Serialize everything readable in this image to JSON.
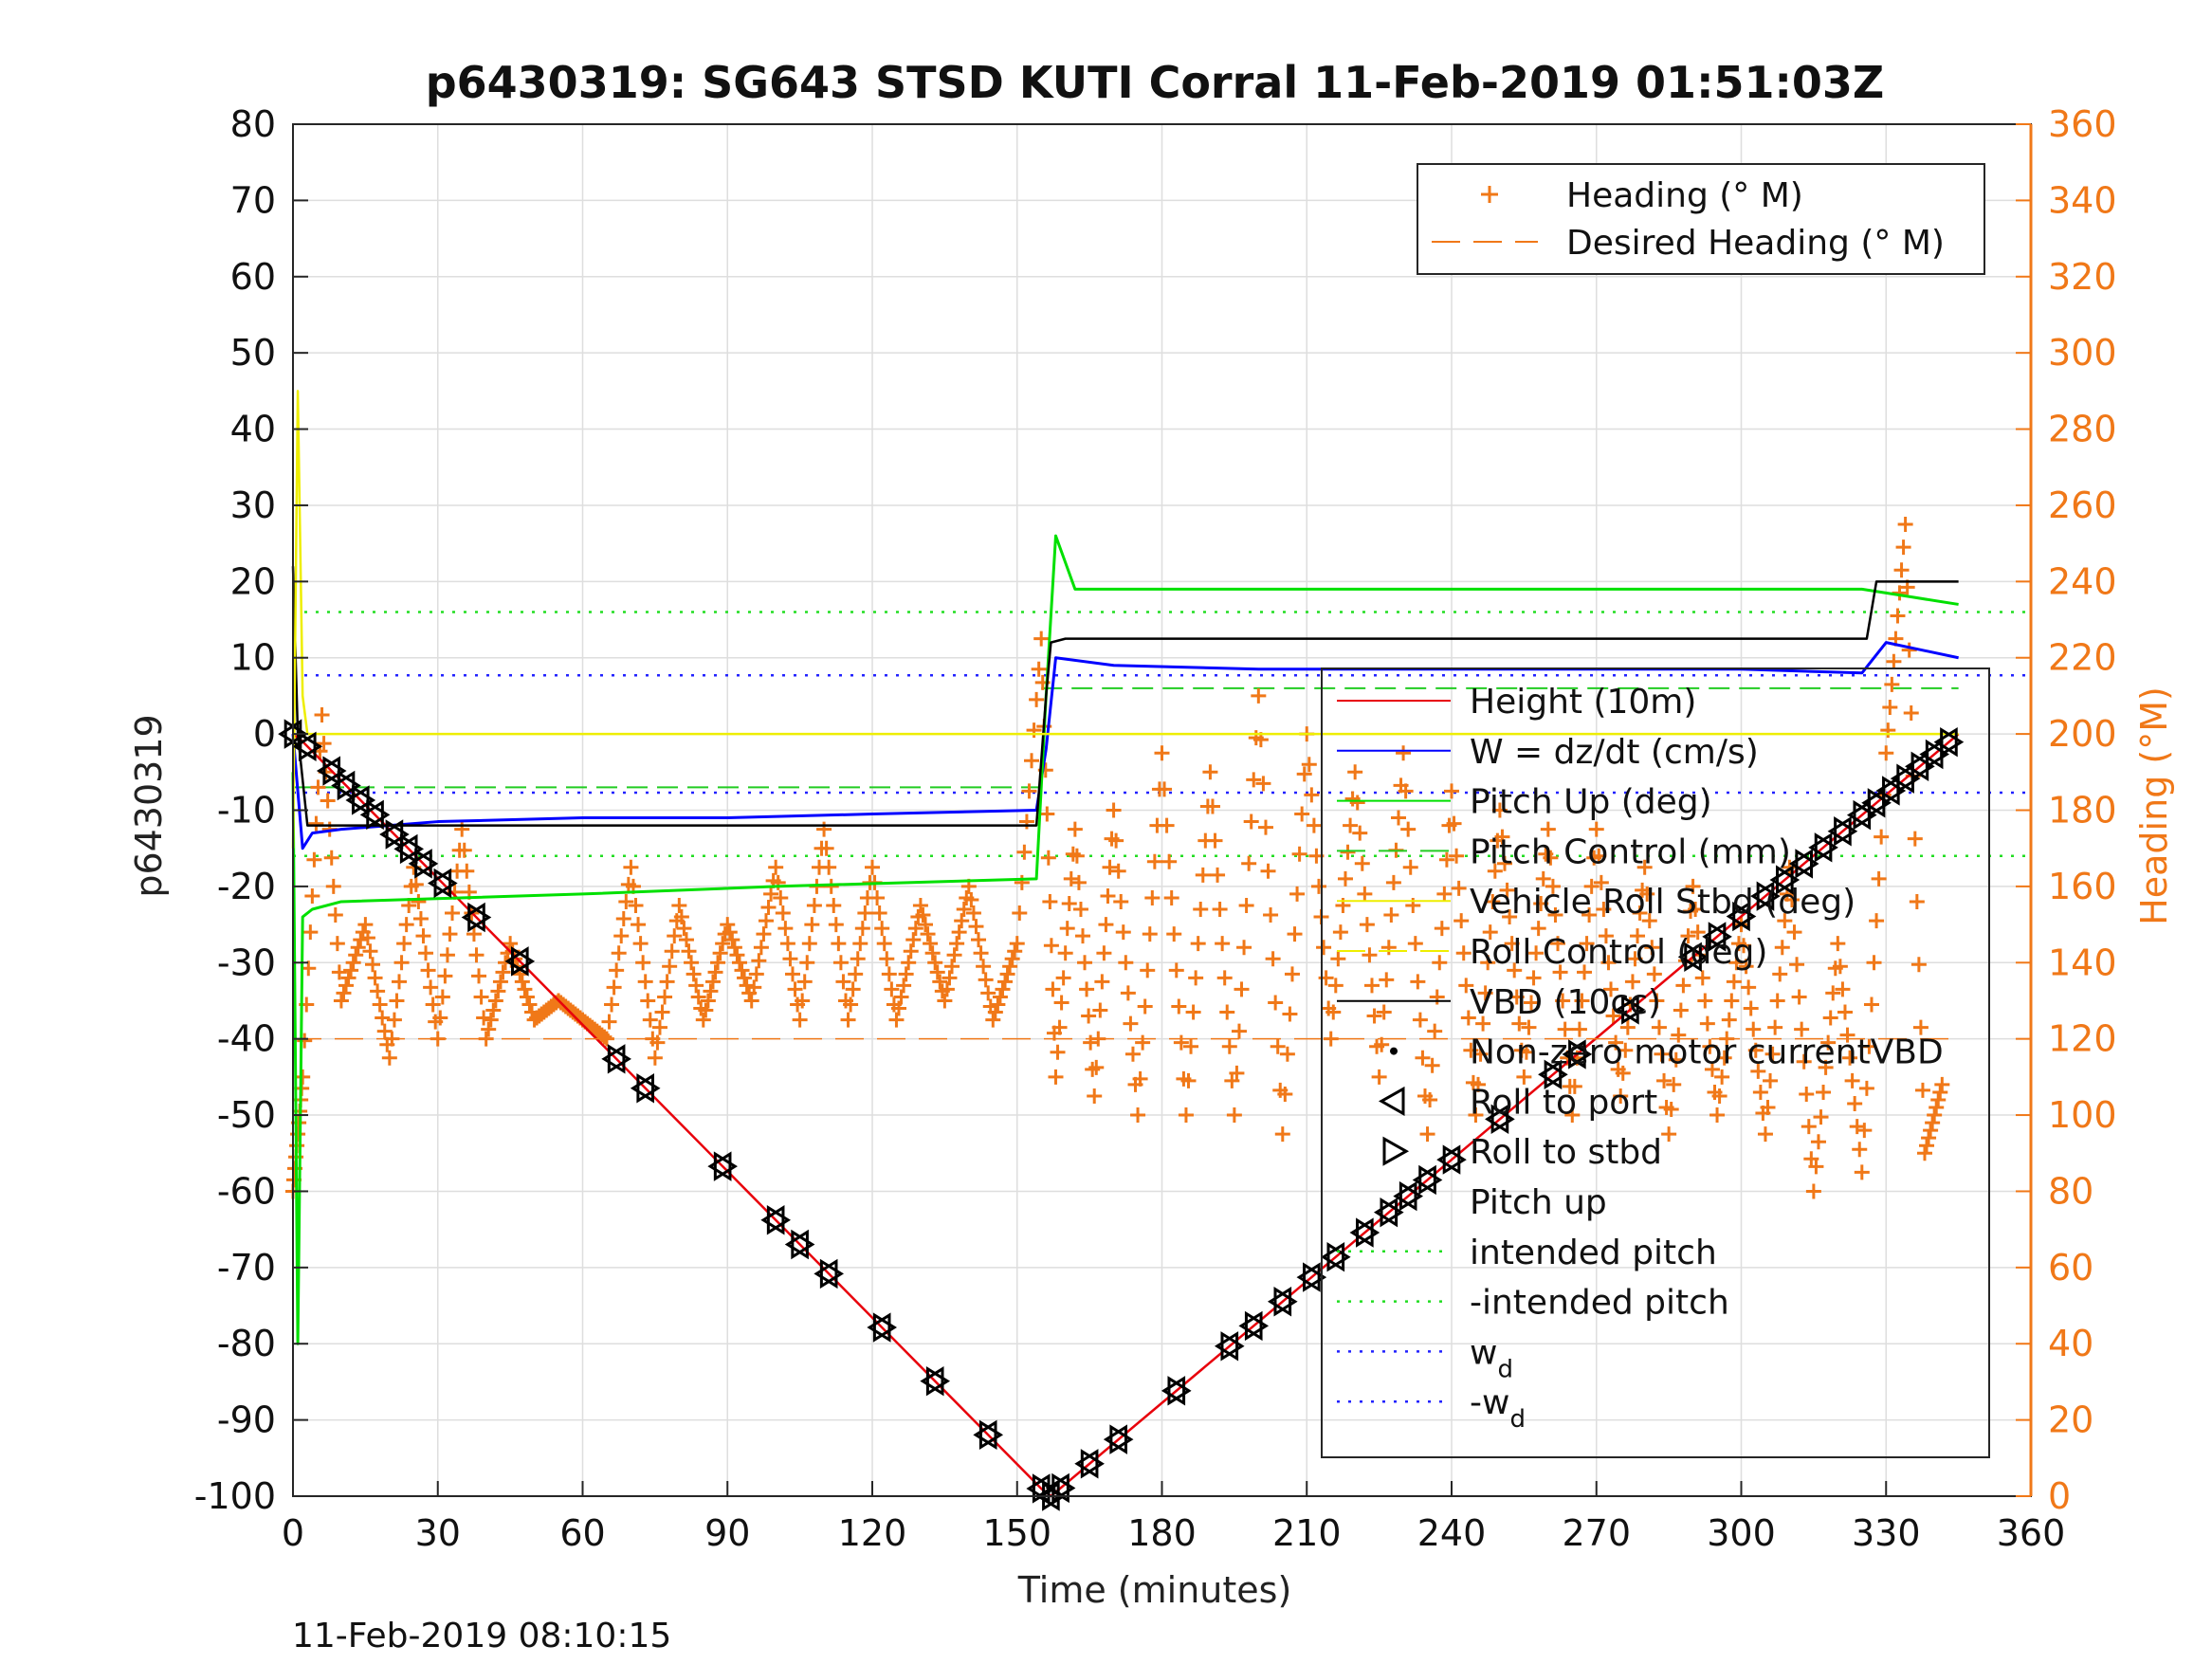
{
  "chart_data": {
    "type": "line",
    "title": "p6430319: SG643 STSD KUTI Corral 11-Feb-2019 01:51:03Z",
    "xlabel": "Time (minutes)",
    "ylabel": "p6430319",
    "y2label": "Heading (°M)",
    "footer": "11-Feb-2019 08:10:15",
    "xlim": [
      0,
      360
    ],
    "ylim": [
      -100,
      80
    ],
    "y2lim": [
      0,
      360
    ],
    "x_ticks": [
      "0",
      "30",
      "60",
      "90",
      "120",
      "150",
      "180",
      "210",
      "240",
      "270",
      "300",
      "330",
      "360"
    ],
    "y_ticks": [
      "80",
      "70",
      "60",
      "50",
      "40",
      "30",
      "20",
      "10",
      "0",
      "-10",
      "-20",
      "-30",
      "-40",
      "-50",
      "-60",
      "-70",
      "-80",
      "-90",
      "-100"
    ],
    "y2_ticks": [
      "360",
      "340",
      "320",
      "300",
      "280",
      "260",
      "240",
      "220",
      "200",
      "180",
      "160",
      "140",
      "120",
      "100",
      "80",
      "60",
      "40",
      "20",
      "0"
    ],
    "grid": true,
    "colors": {
      "height": "#e8000b",
      "w": "#0000ff",
      "pitch_up": "#00e000",
      "pitch_control": "#22cc22",
      "roll": "#eeee00",
      "vbd": "#000000",
      "heading": "#f07818"
    },
    "legend_top": [
      {
        "label": "Heading (° M)",
        "marker": "plus",
        "color": "#f07818"
      },
      {
        "label": "Desired Heading (° M)",
        "marker": "dash",
        "color": "#f07818"
      }
    ],
    "legend_main": [
      {
        "label": "Height (10m)",
        "style": "line",
        "color": "#e8000b"
      },
      {
        "label": "W = dz/dt (cm/s)",
        "style": "line",
        "color": "#0000ff"
      },
      {
        "label": "Pitch Up (deg)",
        "style": "line",
        "color": "#00e000"
      },
      {
        "label": "Pitch Control (mm)",
        "style": "dash",
        "color": "#22cc22"
      },
      {
        "label": "Vehicle Roll Stbd (deg)",
        "style": "line",
        "color": "#eeee00"
      },
      {
        "label": "Roll Control (deg)",
        "style": "dash",
        "color": "#eeee00"
      },
      {
        "label": "VBD (10cc)",
        "style": "line",
        "color": "#000000"
      },
      {
        "label": "Non-zero motor currentVBD",
        "style": "dot",
        "color": "#000000"
      },
      {
        "label": "Roll to port",
        "style": "tri-left",
        "color": "#000000"
      },
      {
        "label": "Roll to stbd",
        "style": "tri-right",
        "color": "#000000"
      },
      {
        "label": "Pitch up",
        "style": "none",
        "color": "#000000"
      },
      {
        "label": "intended pitch",
        "style": "dot-line",
        "color": "#22dd22"
      },
      {
        "label": "-intended pitch",
        "style": "dot-line",
        "color": "#22dd22"
      },
      {
        "label": "w",
        "sub": "d",
        "style": "dot-line",
        "color": "#2222ff"
      },
      {
        "label": "-w",
        "sub": "d",
        "style": "dot-line",
        "color": "#2222ff"
      }
    ],
    "series": [
      {
        "name": "Height (10m)",
        "axis": "left",
        "x": [
          0,
          2,
          155,
          157,
          345
        ],
        "y": [
          0,
          -1,
          -99,
          -100,
          0
        ]
      },
      {
        "name": "W = dz/dt (cm/s)",
        "axis": "left",
        "x": [
          0,
          2,
          4,
          10,
          20,
          30,
          60,
          90,
          120,
          154,
          156,
          158,
          170,
          200,
          240,
          300,
          325,
          330,
          345
        ],
        "y": [
          0,
          -15,
          -13,
          -12.5,
          -12,
          -11.5,
          -11,
          -11,
          -10.5,
          -10,
          -2,
          10,
          9,
          8.5,
          8.5,
          8.5,
          8,
          12,
          10
        ]
      },
      {
        "name": "Pitch Up (deg)",
        "axis": "left",
        "x": [
          0,
          1,
          2,
          4,
          10,
          60,
          100,
          154,
          156,
          158,
          162,
          200,
          260,
          325,
          335,
          345
        ],
        "y": [
          -5,
          -80,
          -24,
          -23,
          -22,
          -21,
          -20,
          -19,
          5,
          26,
          19,
          19,
          19,
          19,
          18,
          17
        ]
      },
      {
        "name": "VBD (10cc)",
        "axis": "left",
        "x": [
          0,
          1,
          3,
          154,
          156,
          157,
          160,
          326,
          328,
          345
        ],
        "y": [
          22,
          0,
          -12,
          -12,
          5,
          12,
          12.5,
          12.5,
          20,
          20
        ]
      },
      {
        "name": "Vehicle Roll Stbd (deg)",
        "axis": "left",
        "x": [
          0,
          1,
          2,
          3,
          6,
          60,
          120,
          155,
          160,
          200,
          280,
          345
        ],
        "y": [
          -15,
          45,
          5,
          0,
          0,
          0,
          0,
          0,
          0,
          0,
          0,
          0
        ]
      },
      {
        "name": "Heading (° M)",
        "axis": "right",
        "x": [
          0,
          2,
          6,
          10,
          15,
          20,
          25,
          30,
          35,
          40,
          45,
          50,
          55,
          60,
          65,
          70,
          75,
          80,
          85,
          90,
          95,
          100,
          105,
          110,
          115,
          120,
          125,
          130,
          135,
          140,
          145,
          150,
          155,
          158,
          162,
          166,
          170,
          175,
          180,
          185,
          190,
          195,
          200,
          205,
          210,
          215,
          220,
          225,
          230,
          235,
          240,
          245,
          250,
          255,
          260,
          265,
          270,
          275,
          280,
          285,
          290,
          295,
          300,
          305,
          310,
          315,
          320,
          325,
          330,
          334,
          338,
          342
        ],
        "y": [
          80,
          110,
          205,
          130,
          150,
          115,
          165,
          120,
          175,
          120,
          145,
          125,
          130,
          125,
          120,
          165,
          115,
          155,
          125,
          150,
          130,
          165,
          125,
          175,
          125,
          165,
          125,
          155,
          130,
          160,
          125,
          145,
          225,
          110,
          175,
          105,
          180,
          100,
          195,
          100,
          190,
          100,
          210,
          95,
          200,
          120,
          190,
          110,
          195,
          95,
          185,
          100,
          180,
          110,
          175,
          100,
          175,
          105,
          165,
          95,
          160,
          100,
          150,
          95,
          165,
          80,
          145,
          85,
          195,
          255,
          90,
          110
        ]
      },
      {
        "name": "Desired Heading (° M)",
        "axis": "right",
        "x": [
          0,
          155,
          157,
          345
        ],
        "y": [
          120,
          120,
          120,
          120
        ]
      }
    ],
    "constant_lines": [
      {
        "name": "intended pitch",
        "value": 16,
        "color": "#22dd22"
      },
      {
        "name": "-intended pitch",
        "value": -16,
        "color": "#22dd22"
      },
      {
        "name": "w_d",
        "value": 7.7,
        "color": "#2222ff"
      },
      {
        "name": "-w_d",
        "value": -7.7,
        "color": "#2222ff"
      },
      {
        "name": "Pitch Control (mm)",
        "value": -7,
        "x_range": [
          0,
          155
        ],
        "color": "#22cc22"
      },
      {
        "name": "Pitch Control (mm) ascent",
        "value": 6,
        "x_range": [
          155,
          345
        ],
        "color": "#22cc22"
      }
    ],
    "markers_height": {
      "x": [
        0,
        3,
        8,
        11,
        14,
        17,
        21,
        24,
        27,
        31,
        38,
        47,
        67,
        73,
        89,
        100,
        105,
        111,
        122,
        133,
        144,
        155,
        157,
        159,
        165,
        171,
        183,
        194,
        199,
        205,
        211,
        216,
        222,
        227,
        231,
        235,
        240,
        250,
        261,
        266,
        277,
        290,
        295,
        300,
        305,
        309,
        313,
        317,
        321,
        325,
        328,
        331,
        334,
        337,
        340,
        343
      ]
    }
  }
}
